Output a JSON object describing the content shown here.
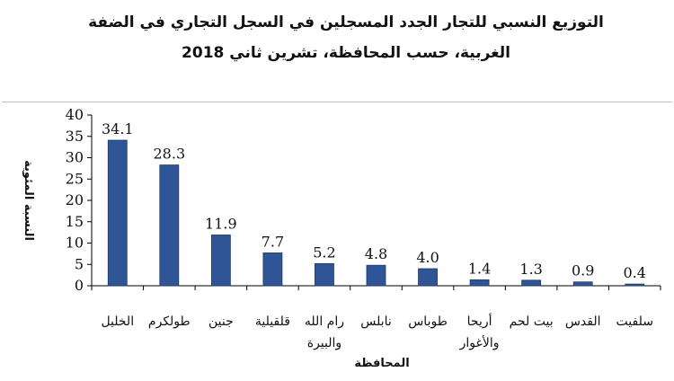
{
  "chart_data": {
    "type": "bar",
    "title": "التوزيع النسبي للتجار الجدد المسجلين في السجل التجاري في الضفة الغربية، حسب المحافظة، تشرين ثاني 2018",
    "xlabel": "المحافظة",
    "ylabel": "النسبة المئوية",
    "ylim": [
      0,
      40
    ],
    "yticks": [
      0,
      5,
      10,
      15,
      20,
      25,
      30,
      35,
      40
    ],
    "categories": [
      [
        "الخليل"
      ],
      [
        "طولكرم"
      ],
      [
        "جنين"
      ],
      [
        "قلقيلية"
      ],
      [
        "رام الله",
        "والبيرة"
      ],
      [
        "نابلس"
      ],
      [
        "طوباس"
      ],
      [
        "أريحا",
        "والأغوار"
      ],
      [
        "بيت لحم"
      ],
      [
        "القدس"
      ],
      [
        "سلفيت"
      ]
    ],
    "values": [
      34.1,
      28.3,
      11.9,
      7.7,
      5.2,
      4.8,
      4.0,
      1.4,
      1.3,
      0.9,
      0.4
    ],
    "value_labels": [
      "34.1",
      "28.3",
      "11.9",
      "7.7",
      "5.2",
      "4.8",
      "4.0",
      "1.4",
      "1.3",
      "0.9",
      "0.4"
    ],
    "bar_color": "#2f5597",
    "grid": false,
    "legend": "none"
  }
}
